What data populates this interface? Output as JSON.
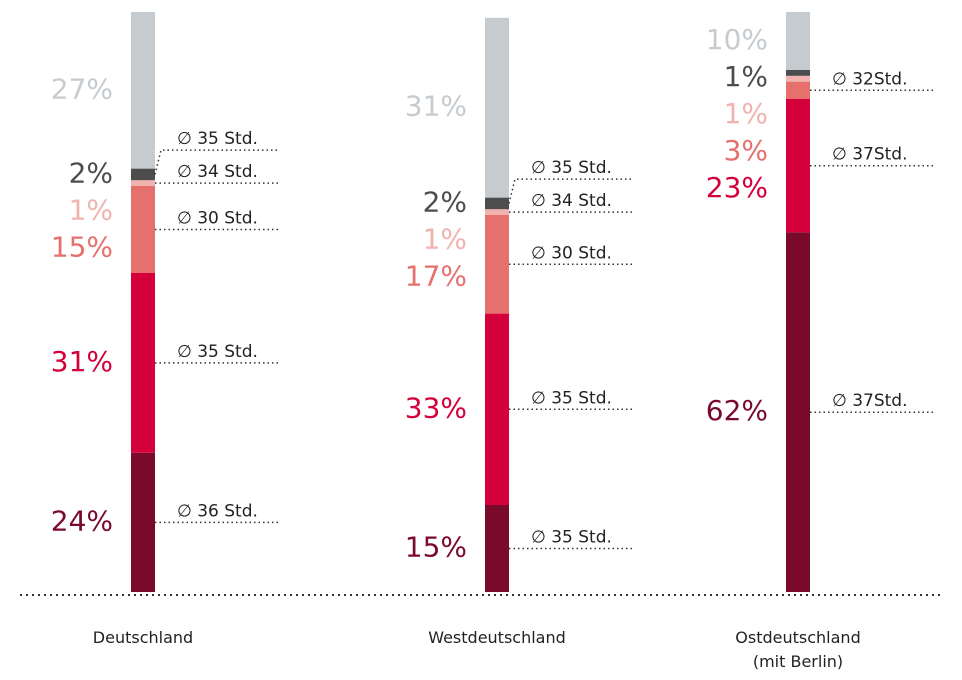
{
  "chart_data": {
    "type": "stacked-bar",
    "categories": [
      "Deutschland",
      "Westdeutschland",
      "Ostdeutschland (mit Berlin)"
    ],
    "ylim": [
      0,
      100
    ],
    "series": [
      {
        "color": "#7a0a2c",
        "values": [
          24,
          15,
          62
        ],
        "value_labels": [
          "24%",
          "15%",
          "62%"
        ],
        "hours": [
          "∅ 36 Std.",
          "∅ 35 Std.",
          "∅ 37Std."
        ]
      },
      {
        "color": "#d4003b",
        "values": [
          31,
          33,
          23
        ],
        "value_labels": [
          "31%",
          "33%",
          "23%"
        ],
        "hours": [
          "∅ 35 Std.",
          "∅ 35 Std.",
          "∅ 37Std."
        ]
      },
      {
        "color": "#e5706e",
        "values": [
          15,
          17,
          3
        ],
        "value_labels": [
          "15%",
          "17%",
          "3%"
        ],
        "hours": [
          "∅ 30 Std.",
          "∅ 30 Std.",
          "∅ 32Std."
        ]
      },
      {
        "color": "#f0b3ae",
        "values": [
          1,
          1,
          1
        ],
        "value_labels": [
          "1%",
          "1%",
          "1%"
        ],
        "hours": [
          "∅ 34 Std.",
          "∅ 34 Std.",
          null
        ]
      },
      {
        "color": "#4d4d4d",
        "values": [
          2,
          2,
          1
        ],
        "value_labels": [
          "2%",
          "2%",
          "1%"
        ],
        "hours": [
          "∅ 35 Std.",
          "∅ 35 Std.",
          null
        ]
      },
      {
        "color": "#c6cbcf",
        "values": [
          27,
          31,
          10
        ],
        "value_labels": [
          "27%",
          "31%",
          "10%"
        ],
        "hours": [
          null,
          null,
          null
        ]
      }
    ]
  }
}
